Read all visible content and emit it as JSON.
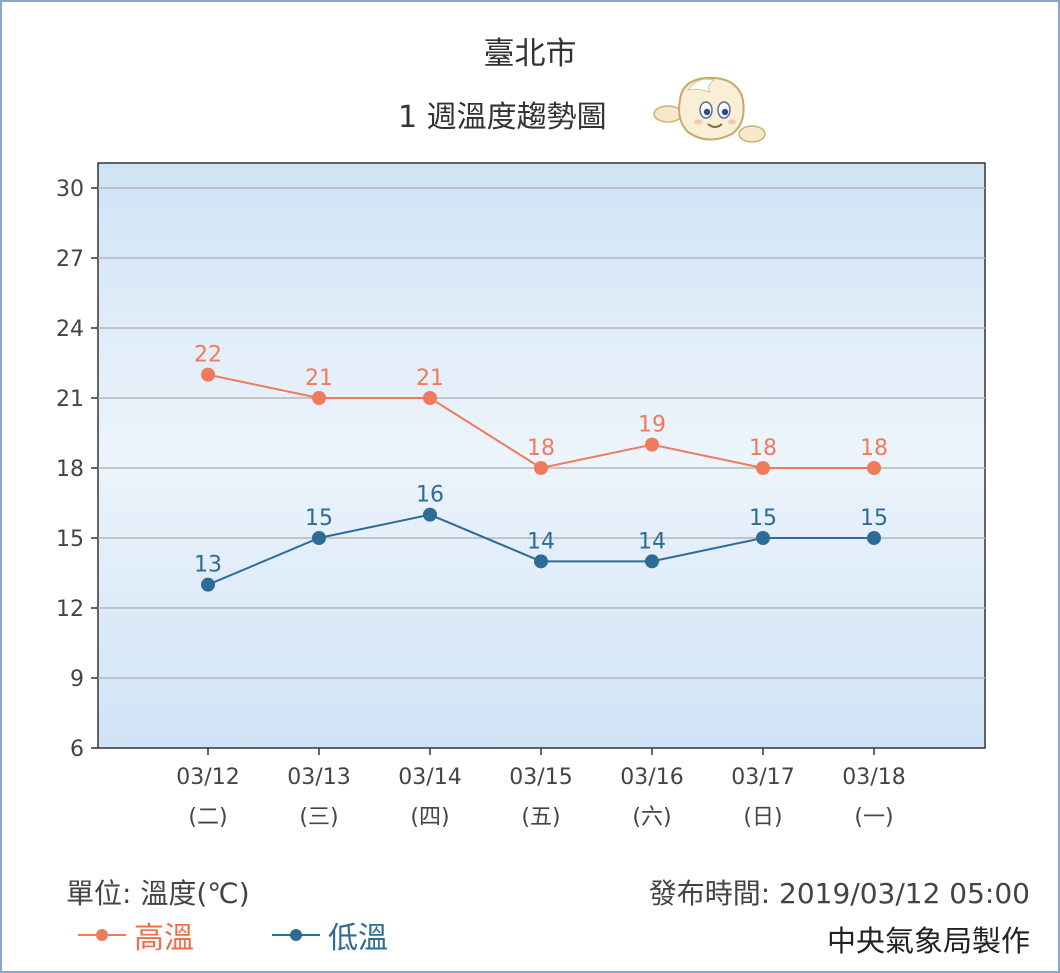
{
  "header": {
    "city": "臺北市",
    "subtitle": "1 週溫度趨勢圖",
    "mascot_icon": "cwb-mascot-icon"
  },
  "footer": {
    "unit": "單位: 溫度(℃)",
    "issued": "發布時間: 2019/03/12 05:00",
    "credit": "中央氣象局製作"
  },
  "legend": {
    "high_label": "高溫",
    "low_label": "低溫"
  },
  "chart_data": {
    "type": "line",
    "categories": [
      "03/12",
      "03/13",
      "03/14",
      "03/15",
      "03/16",
      "03/17",
      "03/18"
    ],
    "category_sublabels": [
      "(二)",
      "(三)",
      "(四)",
      "(五)",
      "(六)",
      "(日)",
      "(一)"
    ],
    "series": [
      {
        "name": "高溫",
        "values": [
          22,
          21,
          21,
          18,
          19,
          18,
          18
        ],
        "color": "#ef7a5e"
      },
      {
        "name": "低溫",
        "values": [
          13,
          15,
          16,
          14,
          14,
          15,
          15
        ],
        "color": "#2d6c97"
      }
    ],
    "ylim": [
      6,
      30
    ],
    "yticks": [
      6,
      9,
      12,
      15,
      18,
      21,
      24,
      27,
      30
    ],
    "grid": true,
    "legend_position": "bottom-left",
    "colors": {
      "plot_bg_edge": "#cfe3f6",
      "plot_bg_center": "#edf4fb",
      "grid": "#b7b7b7",
      "axis": "#333333"
    }
  }
}
